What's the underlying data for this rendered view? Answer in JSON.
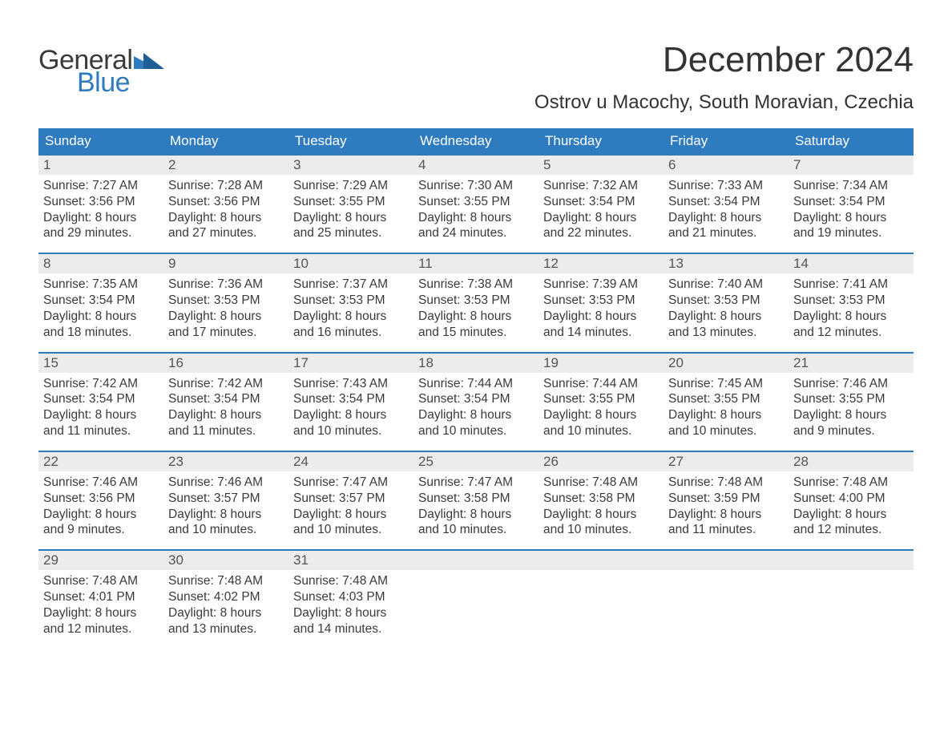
{
  "brand": {
    "line1": "General",
    "line2": "Blue",
    "color_text": "#3a3a3a",
    "color_blue": "#2f7bbf"
  },
  "title": "December 2024",
  "subtitle": "Ostrov u Macochy, South Moravian, Czechia",
  "colors": {
    "header_bg": "#2f7bbf",
    "header_text": "#ffffff",
    "daynum_bg": "#ececec",
    "daynum_text": "#555555",
    "body_text": "#3a3a3a",
    "page_bg": "#ffffff",
    "week_border": "#2f7bbf"
  },
  "fonts": {
    "title_size_pt": 33,
    "subtitle_size_pt": 18,
    "dow_size_pt": 13,
    "body_size_pt": 12
  },
  "dow": [
    "Sunday",
    "Monday",
    "Tuesday",
    "Wednesday",
    "Thursday",
    "Friday",
    "Saturday"
  ],
  "days": [
    {
      "n": 1,
      "sunrise": "7:27 AM",
      "sunset": "3:56 PM",
      "dl1": "Daylight: 8 hours",
      "dl2": "and 29 minutes."
    },
    {
      "n": 2,
      "sunrise": "7:28 AM",
      "sunset": "3:56 PM",
      "dl1": "Daylight: 8 hours",
      "dl2": "and 27 minutes."
    },
    {
      "n": 3,
      "sunrise": "7:29 AM",
      "sunset": "3:55 PM",
      "dl1": "Daylight: 8 hours",
      "dl2": "and 25 minutes."
    },
    {
      "n": 4,
      "sunrise": "7:30 AM",
      "sunset": "3:55 PM",
      "dl1": "Daylight: 8 hours",
      "dl2": "and 24 minutes."
    },
    {
      "n": 5,
      "sunrise": "7:32 AM",
      "sunset": "3:54 PM",
      "dl1": "Daylight: 8 hours",
      "dl2": "and 22 minutes."
    },
    {
      "n": 6,
      "sunrise": "7:33 AM",
      "sunset": "3:54 PM",
      "dl1": "Daylight: 8 hours",
      "dl2": "and 21 minutes."
    },
    {
      "n": 7,
      "sunrise": "7:34 AM",
      "sunset": "3:54 PM",
      "dl1": "Daylight: 8 hours",
      "dl2": "and 19 minutes."
    },
    {
      "n": 8,
      "sunrise": "7:35 AM",
      "sunset": "3:54 PM",
      "dl1": "Daylight: 8 hours",
      "dl2": "and 18 minutes."
    },
    {
      "n": 9,
      "sunrise": "7:36 AM",
      "sunset": "3:53 PM",
      "dl1": "Daylight: 8 hours",
      "dl2": "and 17 minutes."
    },
    {
      "n": 10,
      "sunrise": "7:37 AM",
      "sunset": "3:53 PM",
      "dl1": "Daylight: 8 hours",
      "dl2": "and 16 minutes."
    },
    {
      "n": 11,
      "sunrise": "7:38 AM",
      "sunset": "3:53 PM",
      "dl1": "Daylight: 8 hours",
      "dl2": "and 15 minutes."
    },
    {
      "n": 12,
      "sunrise": "7:39 AM",
      "sunset": "3:53 PM",
      "dl1": "Daylight: 8 hours",
      "dl2": "and 14 minutes."
    },
    {
      "n": 13,
      "sunrise": "7:40 AM",
      "sunset": "3:53 PM",
      "dl1": "Daylight: 8 hours",
      "dl2": "and 13 minutes."
    },
    {
      "n": 14,
      "sunrise": "7:41 AM",
      "sunset": "3:53 PM",
      "dl1": "Daylight: 8 hours",
      "dl2": "and 12 minutes."
    },
    {
      "n": 15,
      "sunrise": "7:42 AM",
      "sunset": "3:54 PM",
      "dl1": "Daylight: 8 hours",
      "dl2": "and 11 minutes."
    },
    {
      "n": 16,
      "sunrise": "7:42 AM",
      "sunset": "3:54 PM",
      "dl1": "Daylight: 8 hours",
      "dl2": "and 11 minutes."
    },
    {
      "n": 17,
      "sunrise": "7:43 AM",
      "sunset": "3:54 PM",
      "dl1": "Daylight: 8 hours",
      "dl2": "and 10 minutes."
    },
    {
      "n": 18,
      "sunrise": "7:44 AM",
      "sunset": "3:54 PM",
      "dl1": "Daylight: 8 hours",
      "dl2": "and 10 minutes."
    },
    {
      "n": 19,
      "sunrise": "7:44 AM",
      "sunset": "3:55 PM",
      "dl1": "Daylight: 8 hours",
      "dl2": "and 10 minutes."
    },
    {
      "n": 20,
      "sunrise": "7:45 AM",
      "sunset": "3:55 PM",
      "dl1": "Daylight: 8 hours",
      "dl2": "and 10 minutes."
    },
    {
      "n": 21,
      "sunrise": "7:46 AM",
      "sunset": "3:55 PM",
      "dl1": "Daylight: 8 hours",
      "dl2": "and 9 minutes."
    },
    {
      "n": 22,
      "sunrise": "7:46 AM",
      "sunset": "3:56 PM",
      "dl1": "Daylight: 8 hours",
      "dl2": "and 9 minutes."
    },
    {
      "n": 23,
      "sunrise": "7:46 AM",
      "sunset": "3:57 PM",
      "dl1": "Daylight: 8 hours",
      "dl2": "and 10 minutes."
    },
    {
      "n": 24,
      "sunrise": "7:47 AM",
      "sunset": "3:57 PM",
      "dl1": "Daylight: 8 hours",
      "dl2": "and 10 minutes."
    },
    {
      "n": 25,
      "sunrise": "7:47 AM",
      "sunset": "3:58 PM",
      "dl1": "Daylight: 8 hours",
      "dl2": "and 10 minutes."
    },
    {
      "n": 26,
      "sunrise": "7:48 AM",
      "sunset": "3:58 PM",
      "dl1": "Daylight: 8 hours",
      "dl2": "and 10 minutes."
    },
    {
      "n": 27,
      "sunrise": "7:48 AM",
      "sunset": "3:59 PM",
      "dl1": "Daylight: 8 hours",
      "dl2": "and 11 minutes."
    },
    {
      "n": 28,
      "sunrise": "7:48 AM",
      "sunset": "4:00 PM",
      "dl1": "Daylight: 8 hours",
      "dl2": "and 12 minutes."
    },
    {
      "n": 29,
      "sunrise": "7:48 AM",
      "sunset": "4:01 PM",
      "dl1": "Daylight: 8 hours",
      "dl2": "and 12 minutes."
    },
    {
      "n": 30,
      "sunrise": "7:48 AM",
      "sunset": "4:02 PM",
      "dl1": "Daylight: 8 hours",
      "dl2": "and 13 minutes."
    },
    {
      "n": 31,
      "sunrise": "7:48 AM",
      "sunset": "4:03 PM",
      "dl1": "Daylight: 8 hours",
      "dl2": "and 14 minutes."
    }
  ],
  "layout": {
    "start_weekday": 0,
    "trailing_empty": 4,
    "columns": 7
  }
}
